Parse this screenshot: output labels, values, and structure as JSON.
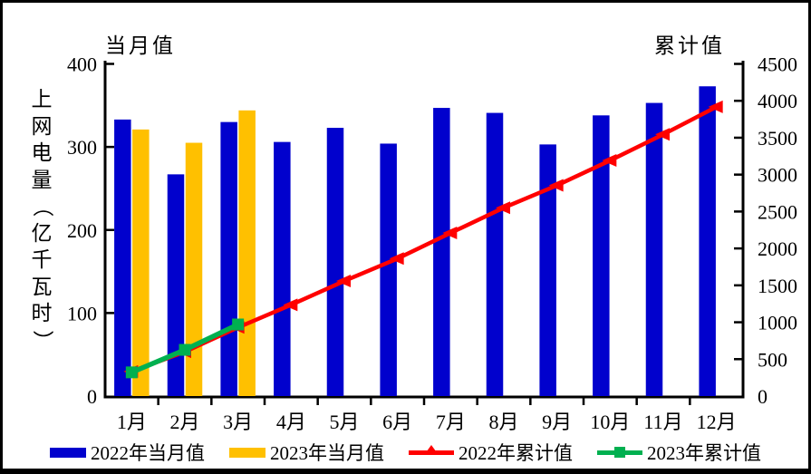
{
  "chart_data": {
    "type": "bar",
    "subtype": "grouped-bars-with-cumulative-lines",
    "title": "",
    "categories": [
      "1月",
      "2月",
      "3月",
      "4月",
      "5月",
      "6月",
      "7月",
      "8月",
      "9月",
      "10月",
      "11月",
      "12月"
    ],
    "left_axis": {
      "header": "当月值",
      "title": "上网电量（亿千瓦时）",
      "min": 0,
      "max": 400,
      "step": 100,
      "ticks": [
        0,
        100,
        200,
        300,
        400
      ]
    },
    "right_axis": {
      "header": "累计值",
      "min": 0,
      "max": 4500,
      "step": 500,
      "ticks": [
        0,
        500,
        1000,
        1500,
        2000,
        2500,
        3000,
        3500,
        4000,
        4500
      ]
    },
    "grid": false,
    "legend_position": "bottom",
    "series": [
      {
        "name": "2022年当月值",
        "type": "bar",
        "axis": "left",
        "marker": "none",
        "color": "#0101CD",
        "values": [
          333,
          267,
          330,
          306,
          323,
          304,
          347,
          341,
          303,
          338,
          353,
          373
        ]
      },
      {
        "name": "2023年当月值",
        "type": "bar",
        "axis": "left",
        "marker": "none",
        "color": "#FFC000",
        "values": [
          321,
          305,
          344
        ]
      },
      {
        "name": "2022年累计值",
        "type": "line",
        "axis": "right",
        "marker": "triangle",
        "color": "#FF0000",
        "values": [
          333,
          600,
          930,
          1236,
          1559,
          1863,
          2210,
          2551,
          2854,
          3192,
          3545,
          3918
        ]
      },
      {
        "name": "2023年累计值",
        "type": "line",
        "axis": "right",
        "marker": "square",
        "color": "#00B050",
        "values": [
          321,
          626,
          970
        ]
      }
    ]
  }
}
